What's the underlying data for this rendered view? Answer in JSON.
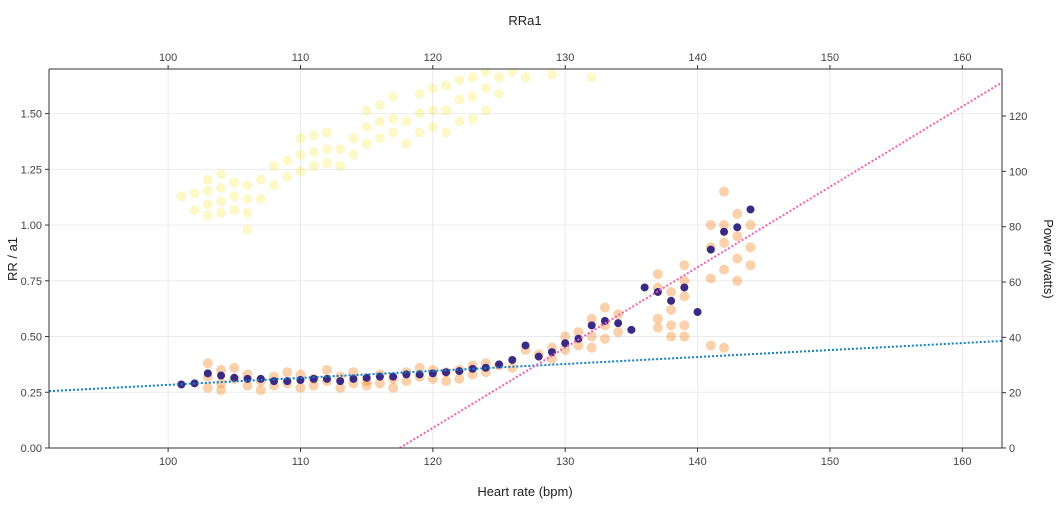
{
  "chart_data": {
    "type": "scatter",
    "title": "RRa1",
    "xlabel": "Heart rate (bpm)",
    "ylabel": "RR / a1",
    "y2label": "Power (watts)",
    "xlim": [
      91,
      163
    ],
    "ylim": [
      0,
      1.7
    ],
    "y2lim": [
      0,
      137
    ],
    "x_ticks": [
      "100",
      "110",
      "120",
      "130",
      "140",
      "150",
      "160"
    ],
    "y_ticks": [
      "0.00",
      "0.25",
      "0.50",
      "0.75",
      "1.00",
      "1.25",
      "1.50"
    ],
    "y2_ticks": [
      "0",
      "20",
      "40",
      "60",
      "80",
      "100",
      "120"
    ],
    "grid": true,
    "colors": {
      "power": "#f5e100",
      "rr_a1": "#f47a0f",
      "mean": "#3b2a84",
      "fit_low": "#1480c4",
      "fit_high": "#f05fb4"
    },
    "series": [
      {
        "name": "",
        "axis": "right",
        "marker": "power",
        "points": [
          [
            101,
            91
          ],
          [
            102,
            86
          ],
          [
            102,
            92
          ],
          [
            103,
            84
          ],
          [
            103,
            88
          ],
          [
            103,
            93
          ],
          [
            103,
            97
          ],
          [
            104,
            85
          ],
          [
            104,
            89
          ],
          [
            104,
            94
          ],
          [
            104,
            99
          ],
          [
            105,
            86
          ],
          [
            105,
            91
          ],
          [
            105,
            96
          ],
          [
            106,
            85
          ],
          [
            106,
            90
          ],
          [
            106,
            95
          ],
          [
            106,
            79
          ],
          [
            107,
            90
          ],
          [
            107,
            97
          ],
          [
            108,
            95
          ],
          [
            108,
            102
          ],
          [
            109,
            98
          ],
          [
            109,
            104
          ],
          [
            110,
            100
          ],
          [
            110,
            106
          ],
          [
            110,
            112
          ],
          [
            111,
            102
          ],
          [
            111,
            107
          ],
          [
            111,
            113
          ],
          [
            112,
            103
          ],
          [
            112,
            108
          ],
          [
            112,
            114
          ],
          [
            113,
            102
          ],
          [
            113,
            108
          ],
          [
            114,
            106
          ],
          [
            114,
            112
          ],
          [
            115,
            110
          ],
          [
            115,
            116
          ],
          [
            115,
            122
          ],
          [
            116,
            112
          ],
          [
            116,
            118
          ],
          [
            116,
            124
          ],
          [
            117,
            114
          ],
          [
            117,
            119
          ],
          [
            117,
            127
          ],
          [
            118,
            110
          ],
          [
            118,
            118
          ],
          [
            119,
            114
          ],
          [
            119,
            121
          ],
          [
            119,
            128
          ],
          [
            120,
            116
          ],
          [
            120,
            122
          ],
          [
            120,
            130
          ],
          [
            121,
            114
          ],
          [
            121,
            122
          ],
          [
            121,
            131
          ],
          [
            122,
            118
          ],
          [
            122,
            126
          ],
          [
            122,
            133
          ],
          [
            123,
            119
          ],
          [
            123,
            127
          ],
          [
            123,
            134
          ],
          [
            124,
            122
          ],
          [
            124,
            130
          ],
          [
            124,
            136
          ],
          [
            125,
            128
          ],
          [
            125,
            134
          ],
          [
            126,
            136
          ],
          [
            127,
            134
          ],
          [
            129,
            135
          ],
          [
            132,
            134
          ]
        ]
      },
      {
        "name": "",
        "axis": "left",
        "marker": "rr_a1",
        "points": [
          [
            103,
            0.32
          ],
          [
            103,
            0.27
          ],
          [
            103,
            0.38
          ],
          [
            104,
            0.29
          ],
          [
            104,
            0.35
          ],
          [
            104,
            0.26
          ],
          [
            105,
            0.31
          ],
          [
            105,
            0.36
          ],
          [
            106,
            0.28
          ],
          [
            106,
            0.33
          ],
          [
            107,
            0.3
          ],
          [
            107,
            0.26
          ],
          [
            108,
            0.28
          ],
          [
            108,
            0.32
          ],
          [
            109,
            0.29
          ],
          [
            109,
            0.34
          ],
          [
            110,
            0.27
          ],
          [
            110,
            0.33
          ],
          [
            111,
            0.28
          ],
          [
            111,
            0.31
          ],
          [
            112,
            0.3
          ],
          [
            112,
            0.35
          ],
          [
            113,
            0.27
          ],
          [
            113,
            0.32
          ],
          [
            114,
            0.29
          ],
          [
            114,
            0.34
          ],
          [
            115,
            0.3
          ],
          [
            115,
            0.28
          ],
          [
            116,
            0.33
          ],
          [
            116,
            0.29
          ],
          [
            117,
            0.31
          ],
          [
            117,
            0.27
          ],
          [
            118,
            0.3
          ],
          [
            118,
            0.34
          ],
          [
            119,
            0.32
          ],
          [
            119,
            0.36
          ],
          [
            120,
            0.31
          ],
          [
            120,
            0.35
          ],
          [
            121,
            0.34
          ],
          [
            121,
            0.3
          ],
          [
            122,
            0.35
          ],
          [
            122,
            0.31
          ],
          [
            123,
            0.37
          ],
          [
            123,
            0.33
          ],
          [
            124,
            0.38
          ],
          [
            124,
            0.34
          ],
          [
            125,
            0.37
          ],
          [
            126,
            0.36
          ],
          [
            127,
            0.44
          ],
          [
            128,
            0.42
          ],
          [
            129,
            0.45
          ],
          [
            129,
            0.4
          ],
          [
            130,
            0.5
          ],
          [
            130,
            0.44
          ],
          [
            131,
            0.52
          ],
          [
            131,
            0.46
          ],
          [
            132,
            0.58
          ],
          [
            132,
            0.5
          ],
          [
            132,
            0.45
          ],
          [
            133,
            0.63
          ],
          [
            133,
            0.55
          ],
          [
            133,
            0.49
          ],
          [
            134,
            0.6
          ],
          [
            134,
            0.52
          ],
          [
            137,
            0.78
          ],
          [
            137,
            0.72
          ],
          [
            137,
            0.58
          ],
          [
            137,
            0.54
          ],
          [
            138,
            0.7
          ],
          [
            138,
            0.62
          ],
          [
            138,
            0.55
          ],
          [
            138,
            0.5
          ],
          [
            139,
            0.82
          ],
          [
            139,
            0.75
          ],
          [
            139,
            0.68
          ],
          [
            139,
            0.55
          ],
          [
            139,
            0.5
          ],
          [
            141,
            1.0
          ],
          [
            141,
            0.9
          ],
          [
            141,
            0.76
          ],
          [
            141,
            0.46
          ],
          [
            142,
            1.15
          ],
          [
            142,
            1.0
          ],
          [
            142,
            0.92
          ],
          [
            142,
            0.8
          ],
          [
            142,
            0.45
          ],
          [
            143,
            1.05
          ],
          [
            143,
            0.95
          ],
          [
            143,
            0.85
          ],
          [
            143,
            0.75
          ],
          [
            144,
            1.0
          ],
          [
            144,
            0.9
          ],
          [
            144,
            0.82
          ]
        ]
      },
      {
        "name": "",
        "axis": "left",
        "marker": "mean",
        "points": [
          [
            101,
            0.285
          ],
          [
            102,
            0.29
          ],
          [
            103,
            0.335
          ],
          [
            104,
            0.325
          ],
          [
            105,
            0.315
          ],
          [
            106,
            0.31
          ],
          [
            107,
            0.31
          ],
          [
            108,
            0.3
          ],
          [
            109,
            0.3
          ],
          [
            110,
            0.305
          ],
          [
            111,
            0.31
          ],
          [
            112,
            0.31
          ],
          [
            113,
            0.3
          ],
          [
            114,
            0.31
          ],
          [
            115,
            0.315
          ],
          [
            116,
            0.32
          ],
          [
            117,
            0.32
          ],
          [
            118,
            0.33
          ],
          [
            119,
            0.33
          ],
          [
            120,
            0.335
          ],
          [
            121,
            0.34
          ],
          [
            122,
            0.345
          ],
          [
            123,
            0.355
          ],
          [
            124,
            0.36
          ],
          [
            125,
            0.375
          ],
          [
            126,
            0.395
          ],
          [
            127,
            0.46
          ],
          [
            128,
            0.41
          ],
          [
            129,
            0.43
          ],
          [
            130,
            0.47
          ],
          [
            131,
            0.49
          ],
          [
            132,
            0.55
          ],
          [
            133,
            0.57
          ],
          [
            134,
            0.56
          ],
          [
            135,
            0.53
          ],
          [
            136,
            0.72
          ],
          [
            137,
            0.7
          ],
          [
            138,
            0.66
          ],
          [
            139,
            0.72
          ],
          [
            140,
            0.61
          ],
          [
            141,
            0.89
          ],
          [
            142,
            0.97
          ],
          [
            143,
            0.99
          ],
          [
            144,
            1.07
          ]
        ]
      }
    ],
    "fit_lines": [
      {
        "axis": "left",
        "color": "fit_low",
        "x": [
          91,
          163
        ],
        "y": [
          0.255,
          0.48
        ]
      },
      {
        "axis": "left",
        "color": "fit_high",
        "x": [
          117.5,
          163
        ],
        "y": [
          0.0,
          1.64
        ]
      }
    ]
  }
}
